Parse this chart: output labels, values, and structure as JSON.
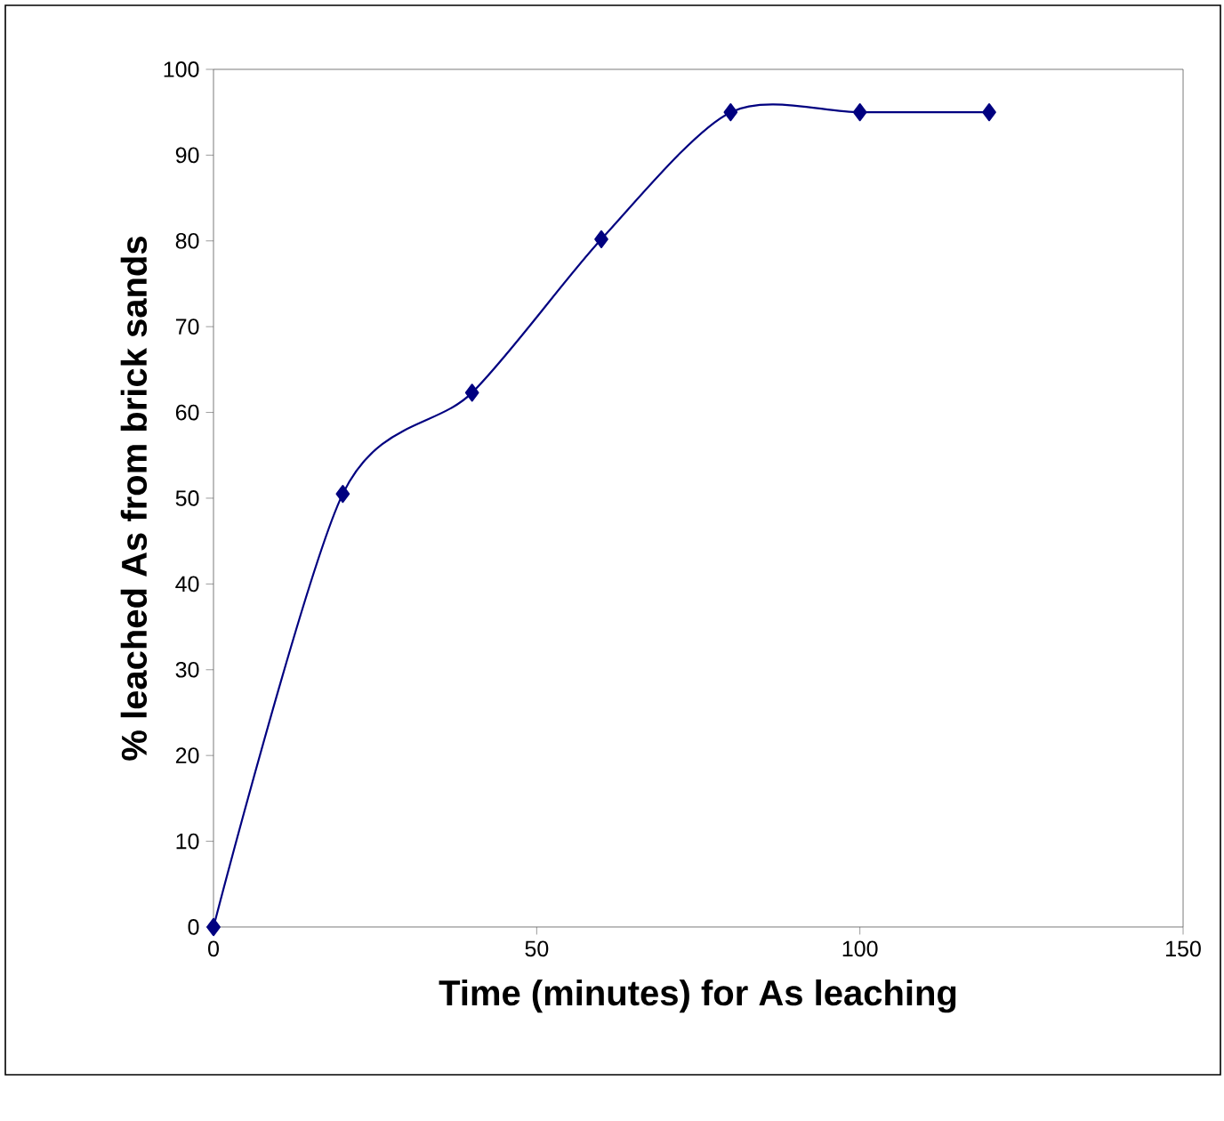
{
  "chart_data": {
    "type": "line",
    "xlabel": "Time (minutes) for As leaching",
    "ylabel": "% leached As from brick sands",
    "x": [
      0,
      20,
      40,
      60,
      80,
      100,
      120
    ],
    "values": [
      0,
      50.5,
      62.3,
      80.2,
      95,
      95,
      95
    ],
    "color": "#000080",
    "marker": "diamond",
    "line_style": "solid",
    "xlim": [
      0,
      150
    ],
    "ylim": [
      0,
      100
    ],
    "xticks": [
      0,
      50,
      100,
      150
    ],
    "yticks": [
      0,
      10,
      20,
      30,
      40,
      50,
      60,
      70,
      80,
      90,
      100
    ]
  }
}
